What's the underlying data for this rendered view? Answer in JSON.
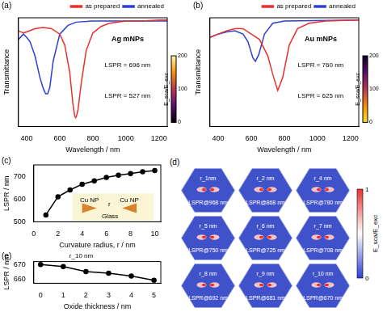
{
  "chart_data": [
    {
      "type": "line",
      "panel_label": "(a)",
      "title": "Ag mNPs",
      "x_label": "Wavelength / nm",
      "y_label": "Transmittance",
      "xlim": [
        350,
        1250
      ],
      "xticks": [
        400,
        600,
        800,
        1000,
        1200
      ],
      "ylim": [
        0,
        1
      ],
      "tick_labels": "x",
      "legend": "top-right",
      "series": [
        {
          "name": "as prepared",
          "color": "#e8312f",
          "x": [
            350,
            380,
            400,
            450,
            500,
            550,
            600,
            630,
            660,
            680,
            690,
            696,
            700,
            710,
            730,
            760,
            800,
            850,
            900,
            1000,
            1100,
            1200,
            1250
          ],
          "values": [
            0.88,
            0.86,
            0.87,
            0.9,
            0.91,
            0.9,
            0.85,
            0.75,
            0.5,
            0.2,
            0.1,
            0.08,
            0.09,
            0.15,
            0.4,
            0.7,
            0.86,
            0.92,
            0.95,
            0.97,
            0.97,
            0.98,
            0.98
          ]
        },
        {
          "name": "annealed",
          "color": "#2b3fd6",
          "x": [
            350,
            380,
            400,
            420,
            450,
            480,
            500,
            515,
            527,
            540,
            560,
            600,
            650,
            700,
            800,
            900,
            1000,
            1200,
            1250
          ],
          "values": [
            0.8,
            0.85,
            0.82,
            0.78,
            0.65,
            0.45,
            0.35,
            0.3,
            0.3,
            0.36,
            0.6,
            0.85,
            0.93,
            0.96,
            0.97,
            0.97,
            0.97,
            0.97,
            0.97
          ]
        }
      ],
      "annotations": [
        "LSPR = 696 nm",
        "LSPR = 527 nm"
      ],
      "colorbar": {
        "label": "E_sca/E_exc",
        "range": [
          0,
          200
        ],
        "ticks": [
          0,
          100,
          200
        ]
      }
    },
    {
      "type": "line",
      "panel_label": "(b)",
      "title": "Au mNPs",
      "x_label": "Wavelength / nm",
      "y_label": "Transmittance",
      "xlim": [
        350,
        1250
      ],
      "xticks": [
        400,
        600,
        800,
        1000,
        1200
      ],
      "ylim": [
        0,
        1
      ],
      "tick_labels": "x",
      "legend": "top-right",
      "series": [
        {
          "name": "as prepared",
          "color": "#e8312f",
          "x": [
            350,
            400,
            450,
            500,
            550,
            600,
            650,
            700,
            730,
            760,
            790,
            830,
            880,
            950,
            1050,
            1250
          ],
          "values": [
            0.82,
            0.85,
            0.88,
            0.9,
            0.9,
            0.85,
            0.8,
            0.65,
            0.48,
            0.33,
            0.45,
            0.75,
            0.9,
            0.95,
            0.97,
            0.98
          ]
        },
        {
          "name": "annealed",
          "color": "#2b3fd6",
          "x": [
            350,
            400,
            450,
            500,
            550,
            580,
            610,
            625,
            645,
            680,
            730,
            800,
            1250
          ],
          "values": [
            0.82,
            0.85,
            0.87,
            0.88,
            0.85,
            0.78,
            0.63,
            0.6,
            0.66,
            0.85,
            0.95,
            0.97,
            0.98
          ]
        }
      ],
      "annotations": [
        "LSPR = 760 nm",
        "LSPR = 625 nm"
      ],
      "colorbar": {
        "label": "E_sca/E_exc",
        "range": [
          0,
          200
        ],
        "ticks": [
          0,
          100,
          200
        ]
      }
    },
    {
      "type": "line",
      "panel_label": "(c)",
      "x_label": "Curvature radius, r / nm",
      "y_label": "LSPR / nm",
      "xlim": [
        0,
        10.5
      ],
      "xticks": [
        0,
        2,
        4,
        6,
        8,
        10
      ],
      "ylim": [
        500,
        750
      ],
      "yticks": [
        500,
        600,
        700
      ],
      "x": [
        1,
        2,
        3,
        4,
        5,
        6,
        7,
        8,
        9,
        10
      ],
      "values": [
        530,
        610,
        640,
        665,
        680,
        695,
        705,
        712,
        720,
        725
      ],
      "color": "#000000",
      "marker": "circle",
      "annotations": [
        "Cu NP",
        "Cu NP",
        "r",
        "Glass"
      ]
    },
    {
      "type": "line",
      "panel_label": "(e)",
      "title": "r_10 nm",
      "x_label": "Oxide thickness / nm",
      "y_label": "LSPR / nm",
      "xlim": [
        -0.3,
        5.3
      ],
      "xticks": [
        0,
        1,
        2,
        3,
        4,
        5
      ],
      "ylim": [
        657,
        672
      ],
      "yticks": [
        660,
        670
      ],
      "x": [
        0,
        1,
        2,
        3,
        4,
        5
      ],
      "values": [
        670,
        668.5,
        665,
        664,
        662,
        659
      ],
      "color": "#000000",
      "marker": "circle"
    }
  ],
  "field_maps": {
    "panel_label": "(d)",
    "maps": [
      {
        "radius": "r_1nm",
        "lspr": "LSPR@968 nm"
      },
      {
        "radius": "r_2 nm",
        "lspr": "LSPR@868 nm"
      },
      {
        "radius": "r_4 nm",
        "lspr": "LSPR@780 nm"
      },
      {
        "radius": "r_5 nm",
        "lspr": "LSPR@750 nm"
      },
      {
        "radius": "r_6 nm",
        "lspr": "LSPR@725 nm"
      },
      {
        "radius": "r_7 nm",
        "lspr": "LSPR@708 nm"
      },
      {
        "radius": "r_8 nm",
        "lspr": "LSPR@692 nm"
      },
      {
        "radius": "r_9 nm",
        "lspr": "LSPR@681 nm"
      },
      {
        "radius": "r_10 nm",
        "lspr": "LSPR@670 nm"
      }
    ],
    "colorbar": {
      "label": "E_sca/E_exc",
      "range": [
        0,
        1
      ],
      "ticks": [
        0,
        1
      ]
    }
  }
}
